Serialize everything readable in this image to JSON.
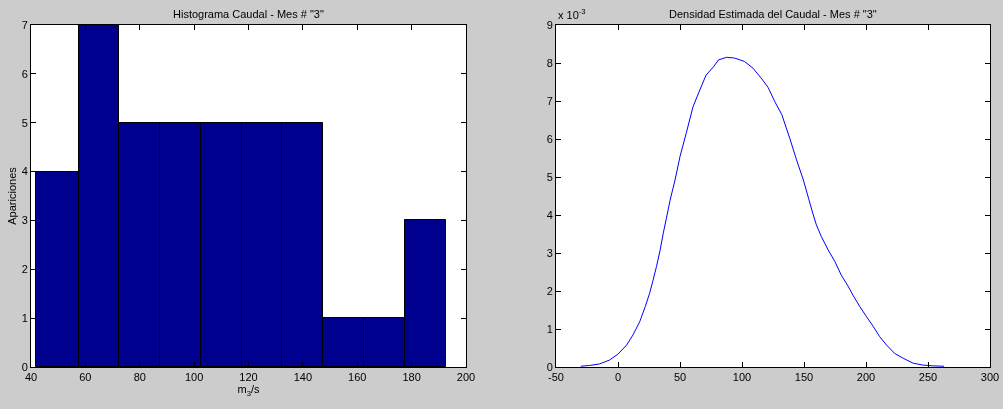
{
  "chart_data": [
    {
      "type": "histogram",
      "title": "Histograma Caudal - Mes # \"3\"",
      "xlabel": "m$_{3}$/s",
      "ylabel": "Apariciones",
      "bins": [
        42,
        57.5,
        72.5,
        87.5,
        102.5,
        117.5,
        132.5,
        147.5,
        162.5,
        177.5,
        192.5
      ],
      "values": [
        4,
        7,
        5,
        5,
        5,
        5,
        5,
        1,
        1,
        3
      ],
      "color": "#00008f",
      "xlim": [
        40,
        200
      ],
      "xticks": [
        40,
        60,
        80,
        100,
        120,
        140,
        160,
        180,
        200
      ],
      "ylim": [
        0,
        7
      ],
      "yticks": [
        0,
        1,
        2,
        3,
        4,
        5,
        6,
        7
      ]
    },
    {
      "type": "line",
      "title": "Densidad Estimada del Caudal - Mes # \"3\"",
      "annotations": [
        "x 10$^{-3}$"
      ],
      "x": [
        -30,
        -23,
        -15,
        -7,
        0,
        7,
        12,
        17.5,
        22,
        25.5,
        28,
        31,
        34,
        36.5,
        39,
        42,
        46,
        50,
        55,
        60.5,
        66,
        71,
        77,
        81,
        87.5,
        94,
        102,
        109,
        115.5,
        121,
        126.5,
        132,
        138.5,
        144,
        149.5,
        154,
        157.5,
        160,
        164,
        169.5,
        175,
        180,
        185.5,
        189.5,
        195,
        200.5,
        206,
        211,
        216.5,
        223,
        230,
        238,
        246,
        254,
        263
      ],
      "values": [
        0.02,
        0.04,
        0.08,
        0.18,
        0.34,
        0.58,
        0.84,
        1.19,
        1.59,
        1.94,
        2.25,
        2.64,
        3.08,
        3.52,
        3.91,
        4.39,
        4.92,
        5.54,
        6.15,
        6.85,
        7.29,
        7.68,
        7.9,
        8.08,
        8.15,
        8.13,
        8.04,
        7.86,
        7.6,
        7.36,
        6.98,
        6.65,
        6.02,
        5.45,
        4.92,
        4.4,
        4.0,
        3.74,
        3.43,
        3.08,
        2.77,
        2.42,
        2.13,
        1.89,
        1.59,
        1.32,
        1.06,
        0.8,
        0.58,
        0.36,
        0.23,
        0.1,
        0.05,
        0.03,
        0.02
      ],
      "color": "#0000ff",
      "xlim": [
        -50,
        300
      ],
      "xticks": [
        -50,
        0,
        50,
        100,
        150,
        200,
        250,
        300
      ],
      "ylim": [
        0,
        9
      ],
      "yticks": [
        0,
        1,
        2,
        3,
        4,
        5,
        6,
        7,
        8,
        9
      ],
      "marker": "none",
      "line_style": "solid"
    }
  ]
}
